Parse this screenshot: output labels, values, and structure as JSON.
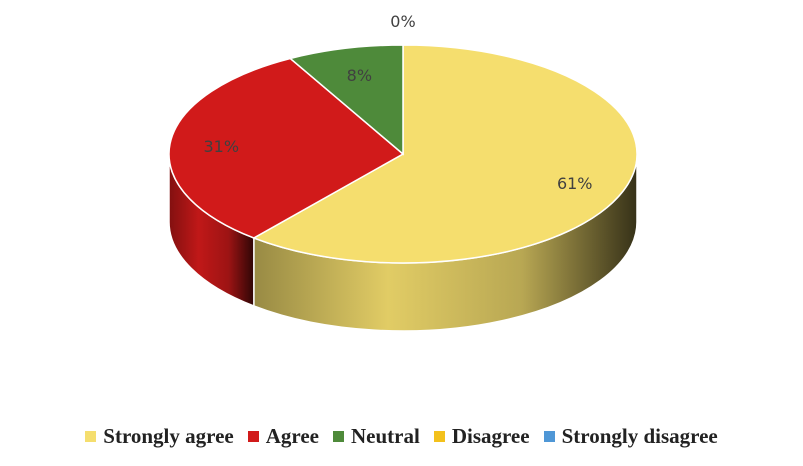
{
  "chart_data": {
    "type": "pie",
    "title": "",
    "categories": [
      "Strongly agree",
      "Agree",
      "Neutral",
      "Disagree",
      "Strongly disagree"
    ],
    "values": [
      61,
      31,
      8,
      0,
      0
    ],
    "data_labels": [
      "61%",
      "31%",
      "8%",
      "0%",
      ""
    ],
    "colors": [
      "#F5DE6E",
      "#D11A1A",
      "#4E8A3A",
      "#F3C11C",
      "#4F97D6"
    ],
    "style": "3d",
    "legend": {
      "position": "bottom",
      "entries": [
        "Strongly agree",
        "Agree",
        "Neutral",
        "Disagree",
        "Strongly disagree"
      ]
    }
  }
}
